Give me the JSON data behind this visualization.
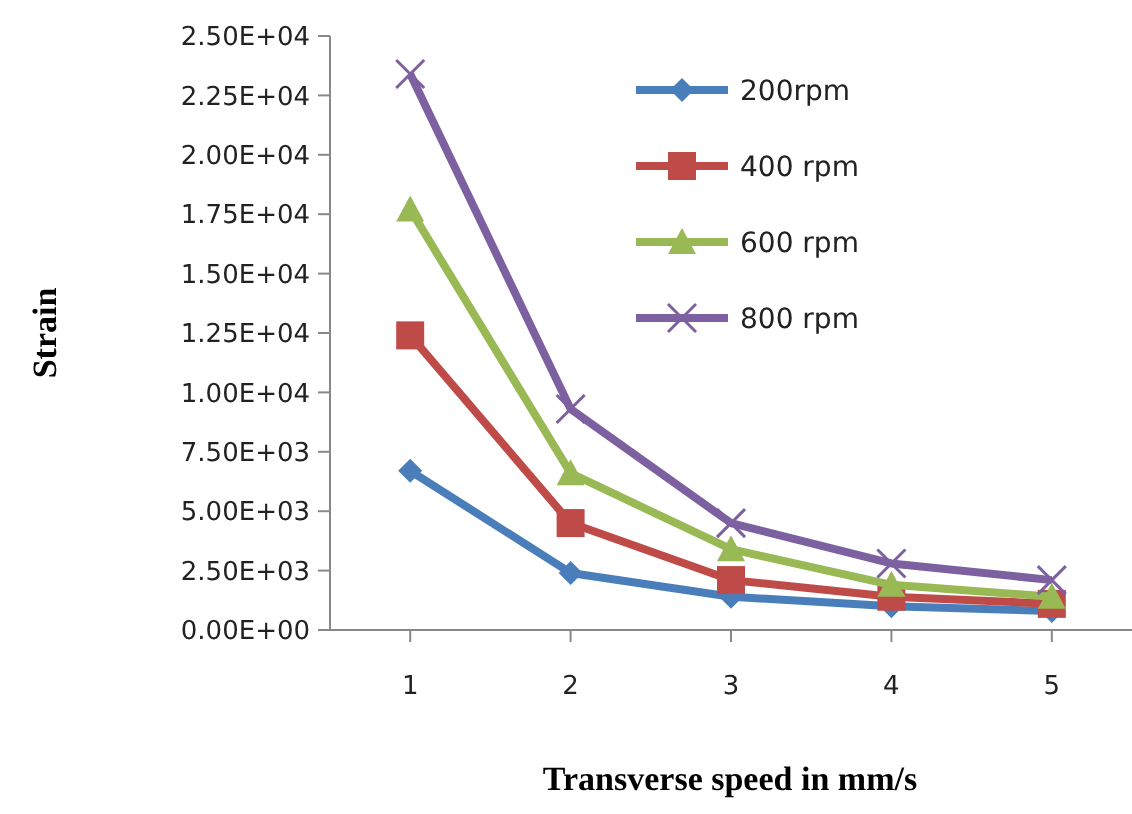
{
  "chart_data": {
    "type": "line",
    "xlabel": "Transverse speed in mm/s",
    "ylabel": "Strain",
    "categories": [
      "1",
      "2",
      "3",
      "4",
      "5"
    ],
    "series": [
      {
        "name": "200rpm",
        "color": "#4a7ebb",
        "marker": "diamond",
        "values": [
          6700,
          2400,
          1400,
          1000,
          800
        ]
      },
      {
        "name": "400 rpm",
        "color": "#be4b48",
        "marker": "square",
        "values": [
          12400,
          4500,
          2100,
          1400,
          1100
        ]
      },
      {
        "name": "600 rpm",
        "color": "#98b954",
        "marker": "triangle",
        "values": [
          17700,
          6600,
          3400,
          1900,
          1400
        ]
      },
      {
        "name": "800 rpm",
        "color": "#7d60a0",
        "marker": "cross",
        "values": [
          23400,
          9300,
          4500,
          2800,
          2100
        ]
      }
    ],
    "ylim": [
      0,
      25000
    ],
    "yticks": [
      {
        "value": 0,
        "label": "0.00E+00"
      },
      {
        "value": 2500,
        "label": "2.50E+03"
      },
      {
        "value": 5000,
        "label": "5.00E+03"
      },
      {
        "value": 7500,
        "label": "7.50E+03"
      },
      {
        "value": 10000,
        "label": "1.00E+04"
      },
      {
        "value": 12500,
        "label": "1.25E+04"
      },
      {
        "value": 15000,
        "label": "1.50E+04"
      },
      {
        "value": 17500,
        "label": "1.75E+04"
      },
      {
        "value": 20000,
        "label": "2.00E+04"
      },
      {
        "value": 22500,
        "label": "2.25E+04"
      },
      {
        "value": 25000,
        "label": "2.50E+04"
      }
    ],
    "grid": false,
    "legend": "top right"
  }
}
